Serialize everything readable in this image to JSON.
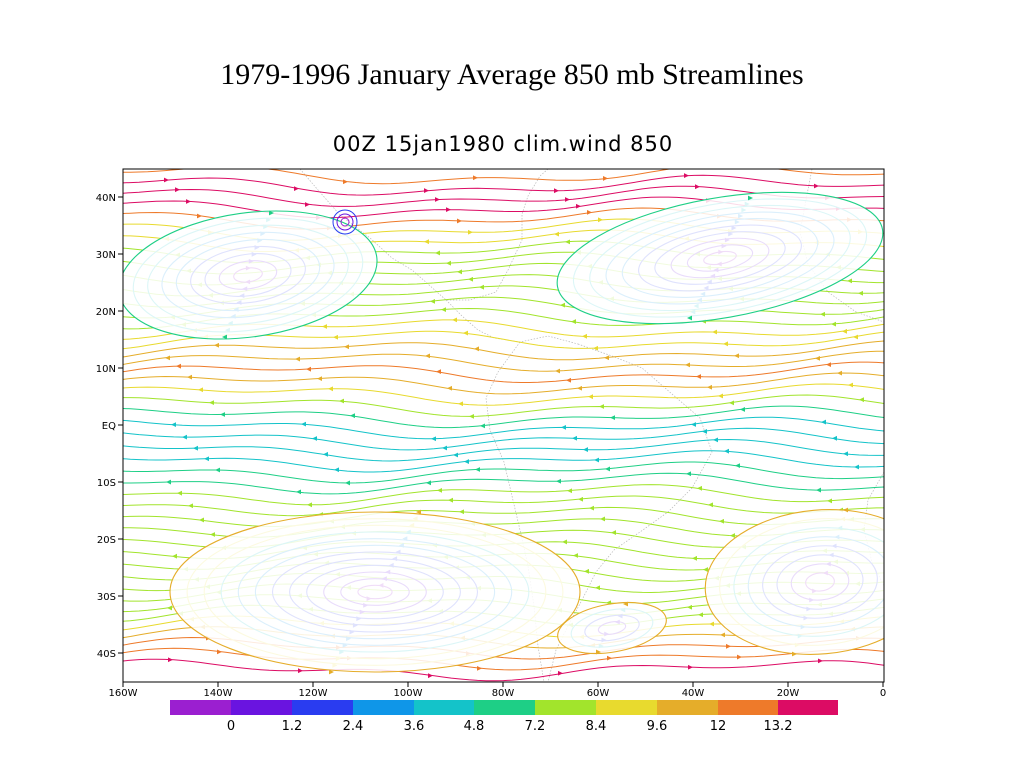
{
  "title": "1979-1996 January Average 850 mb Streamlines",
  "subtitle": "00Z 15jan1980 clim.wind 850",
  "map": {
    "lon_range": [
      -160,
      0
    ],
    "lat_range": [
      -45,
      45
    ],
    "lat_ticks": [
      "40N",
      "30N",
      "20N",
      "10N",
      "EQ",
      "10S",
      "20S",
      "30S",
      "40S"
    ],
    "lon_ticks": [
      "160W",
      "140W",
      "120W",
      "100W",
      "80W",
      "60W",
      "40W",
      "20W",
      "0"
    ]
  },
  "colorbar": {
    "colors": [
      "#9b1fd0",
      "#6a14e0",
      "#2a3cf0",
      "#0f96e8",
      "#14c3c9",
      "#1ecf86",
      "#a2e42c",
      "#e8da2e",
      "#e5ad2a",
      "#ee7a2a",
      "#dc0c64"
    ],
    "labels": [
      "0",
      "1.2",
      "2.4",
      "3.6",
      "4.8",
      "7.2",
      "8.4",
      "9.6",
      "12",
      "13.2"
    ]
  }
}
